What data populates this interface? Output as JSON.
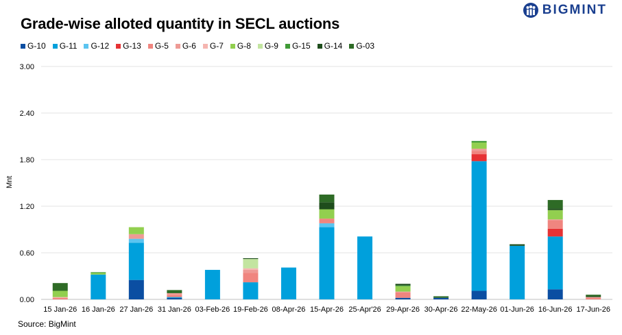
{
  "brand": {
    "name": "BIGMINT",
    "logo_color": "#1a3f8f"
  },
  "source": "Source: BigMint",
  "chart_data": {
    "type": "bar",
    "stacked": true,
    "title": "Grade-wise alloted quantity in SECL auctions",
    "ylabel": "Mnt",
    "xlabel": "",
    "ylim": [
      0,
      3.0
    ],
    "yticks": [
      "0.00",
      "0.60",
      "1.20",
      "1.80",
      "2.40",
      "3.00"
    ],
    "ytick_values": [
      0,
      0.6,
      1.2,
      1.8,
      2.4,
      3.0
    ],
    "grid": true,
    "legend_position": "top-left",
    "categories": [
      "15 Jan-26",
      "16 Jan-26",
      "27 Jan-26",
      "31 Jan-26",
      "03-Feb-26",
      "19-Feb-26",
      "08-Apr-26",
      "15-Apr-26",
      "25-Apr'26",
      "29-Apr-26",
      "30-Apr-26",
      "22-May-26",
      "01-Jun-26",
      "16-Jun-26",
      "17-Jun-26"
    ],
    "series": [
      {
        "name": "G-10",
        "color": "#0b4ea2",
        "values": [
          0.0,
          0.0,
          0.25,
          0.02,
          0.0,
          0.0,
          0.0,
          0.0,
          0.0,
          0.02,
          0.02,
          0.11,
          0.0,
          0.13,
          0.0
        ]
      },
      {
        "name": "G-11",
        "color": "#00a0dc",
        "values": [
          0.0,
          0.32,
          0.48,
          0.01,
          0.38,
          0.22,
          0.41,
          0.93,
          0.81,
          0.0,
          0.0,
          1.67,
          0.69,
          0.68,
          0.0
        ]
      },
      {
        "name": "G-12",
        "color": "#5bc4f0",
        "values": [
          0.0,
          0.0,
          0.05,
          0.0,
          0.0,
          0.0,
          0.0,
          0.05,
          0.0,
          0.0,
          0.0,
          0.0,
          0.0,
          0.0,
          0.0
        ]
      },
      {
        "name": "G-13",
        "color": "#e63234",
        "values": [
          0.0,
          0.0,
          0.0,
          0.0,
          0.0,
          0.0,
          0.0,
          0.0,
          0.0,
          0.0,
          0.0,
          0.09,
          0.0,
          0.1,
          0.0
        ]
      },
      {
        "name": "G-5",
        "color": "#f0857f",
        "values": [
          0.02,
          0.0,
          0.0,
          0.03,
          0.0,
          0.12,
          0.0,
          0.06,
          0.0,
          0.07,
          0.0,
          0.04,
          0.0,
          0.11,
          0.02
        ]
      },
      {
        "name": "G-6",
        "color": "#ee9a95",
        "values": [
          0.0,
          0.0,
          0.06,
          0.02,
          0.0,
          0.04,
          0.0,
          0.0,
          0.0,
          0.01,
          0.0,
          0.03,
          0.0,
          0.01,
          0.01
        ]
      },
      {
        "name": "G-7",
        "color": "#f5b5b0",
        "values": [
          0.01,
          0.0,
          0.0,
          0.0,
          0.0,
          0.02,
          0.0,
          0.0,
          0.0,
          0.0,
          0.0,
          0.0,
          0.0,
          0.0,
          0.0
        ]
      },
      {
        "name": "G-8",
        "color": "#92cf4f",
        "values": [
          0.08,
          0.02,
          0.09,
          0.0,
          0.0,
          0.0,
          0.0,
          0.12,
          0.0,
          0.07,
          0.0,
          0.08,
          0.0,
          0.12,
          0.0
        ]
      },
      {
        "name": "G-9",
        "color": "#c3e5a0",
        "values": [
          0.0,
          0.0,
          0.0,
          0.0,
          0.0,
          0.12,
          0.0,
          0.0,
          0.0,
          0.0,
          0.0,
          0.0,
          0.0,
          0.0,
          0.0
        ]
      },
      {
        "name": "G-15",
        "color": "#3f9a36",
        "values": [
          0.0,
          0.01,
          0.0,
          0.0,
          0.0,
          0.0,
          0.0,
          0.0,
          0.0,
          0.01,
          0.0,
          0.02,
          0.0,
          0.0,
          0.0
        ]
      },
      {
        "name": "G-14",
        "color": "#1e4d1c",
        "values": [
          0.0,
          0.0,
          0.0,
          0.0,
          0.0,
          0.01,
          0.0,
          0.09,
          0.0,
          0.02,
          0.0,
          0.0,
          0.02,
          0.02,
          0.01
        ]
      },
      {
        "name": "G-03",
        "color": "#2e6b26",
        "values": [
          0.1,
          0.0,
          0.0,
          0.04,
          0.0,
          0.0,
          0.0,
          0.1,
          0.0,
          0.0,
          0.02,
          0.0,
          0.0,
          0.11,
          0.02
        ]
      }
    ]
  }
}
